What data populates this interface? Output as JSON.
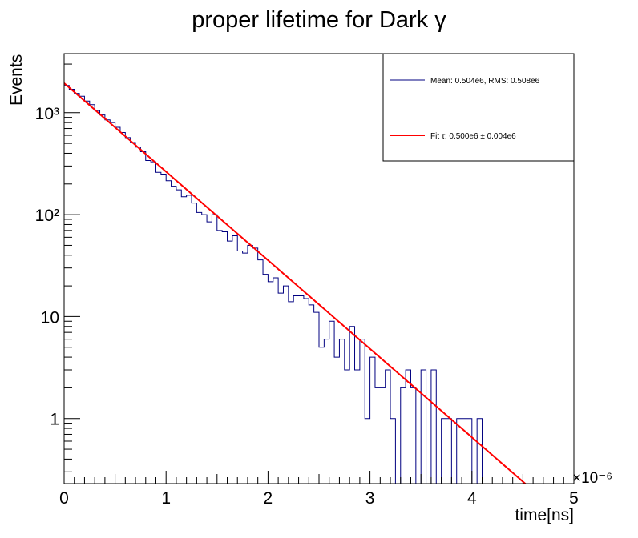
{
  "chart_data": {
    "type": "histogram",
    "title": "proper lifetime for Dark γ",
    "xlabel": "time[ns]",
    "ylabel": "Events",
    "x_scale_label": "×10⁻⁶",
    "xlim": [
      0,
      5e-06
    ],
    "ylim": [
      0.23,
      3800
    ],
    "y_scale": "log",
    "x_ticks": [
      0,
      1e-06,
      2e-06,
      3e-06,
      4e-06,
      5e-06
    ],
    "x_tick_labels": [
      "0",
      "1",
      "2",
      "3",
      "4",
      "5"
    ],
    "y_ticks": [
      1,
      10,
      100,
      1000
    ],
    "y_tick_labels": [
      "1",
      "10",
      "10²",
      "10³"
    ],
    "bin_width": 5e-08,
    "bin_start": 0,
    "series": [
      {
        "name": "Mean: 0.504e6, RMS: 0.508e6",
        "kind": "histogram",
        "color": "#000080",
        "values": [
          1850,
          1700,
          1550,
          1450,
          1300,
          1200,
          1050,
          950,
          850,
          800,
          720,
          640,
          570,
          510,
          460,
          415,
          340,
          330,
          260,
          250,
          215,
          190,
          175,
          150,
          155,
          130,
          105,
          100,
          85,
          100,
          70,
          68,
          55,
          62,
          44,
          42,
          50,
          47,
          36,
          26,
          22,
          24,
          17,
          20,
          14,
          16,
          16,
          15,
          13,
          11,
          5,
          6,
          9,
          4,
          6,
          3,
          8,
          3,
          6,
          1,
          4,
          2,
          2,
          3,
          1,
          0,
          2,
          3,
          2,
          0,
          3,
          0,
          3,
          0,
          1,
          1,
          0,
          1,
          1,
          1,
          0,
          1,
          0,
          0,
          0,
          0,
          0,
          0,
          0,
          0,
          0,
          0,
          0,
          0,
          0,
          0,
          0,
          0,
          0,
          0
        ]
      },
      {
        "name": "Fit τ: 0.500e6 ± 0.004e6",
        "kind": "fit",
        "color": "#ff0000",
        "amplitude": 1950,
        "tau": 5e-07,
        "x_range": [
          0,
          4.62e-06
        ]
      }
    ],
    "legend": {
      "placement": "top-right",
      "entries": [
        {
          "label": "Mean: 0.504e6, RMS: 0.508e6",
          "color": "#000080"
        },
        {
          "label": "Fit τ: 0.500e6 ± 0.004e6",
          "color": "#ff0000"
        }
      ]
    },
    "grid": false
  }
}
